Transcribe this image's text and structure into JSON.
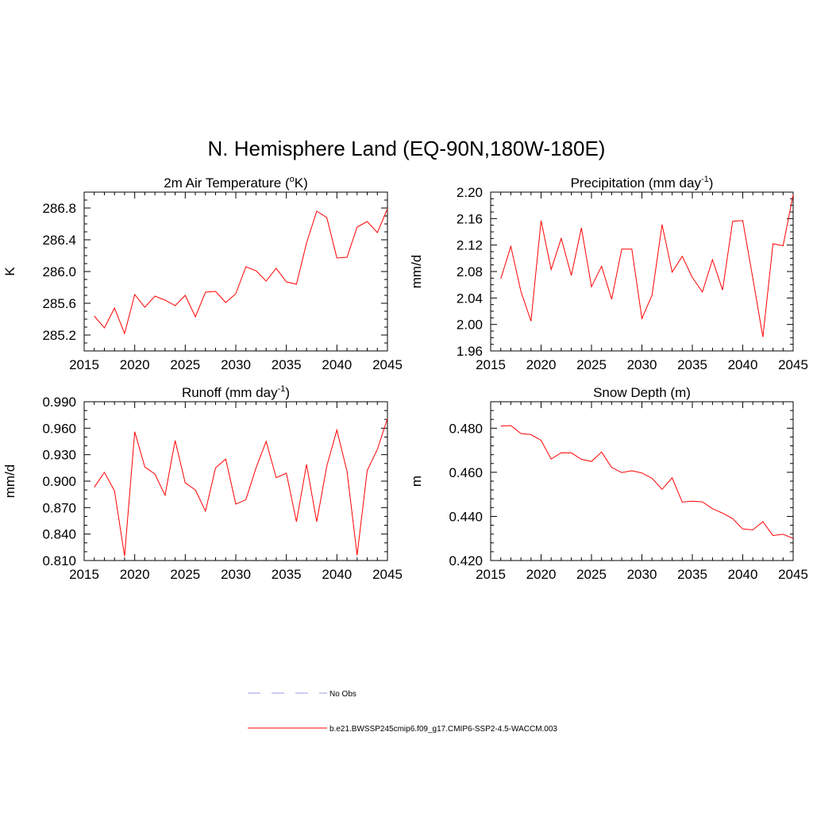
{
  "main_title": "N. Hemisphere Land (EQ-90N,180W-180E)",
  "colors": {
    "model_line": "#ff0000",
    "obs_line": "#aab0e6",
    "axis": "#000000"
  },
  "legend": [
    {
      "label": "No Obs",
      "style": "dashed",
      "color": "#aab0e6"
    },
    {
      "label": "b.e21.BWSSP245cmip6.f09_g17.CMIP6-SSP2-4.5-WACCM.003",
      "style": "solid",
      "color": "#ff0000"
    }
  ],
  "chart_data": [
    {
      "type": "line",
      "title_parts": [
        "2m Air Temperature (",
        "o",
        "K)"
      ],
      "title_style": "sup-middle",
      "ylabel": "K",
      "xlim": [
        2015,
        2045
      ],
      "ylim": [
        285.0,
        287.0
      ],
      "xticks": [
        2015,
        2020,
        2025,
        2030,
        2035,
        2040,
        2045
      ],
      "xtick_labels": [
        "2015",
        "2020",
        "2025",
        "2030",
        "2035",
        "2040",
        "2045"
      ],
      "yticks": [
        285.2,
        285.6,
        286.0,
        286.4,
        286.8
      ],
      "ytick_labels": [
        "285.2",
        "285.6",
        "286.0",
        "286.4",
        "286.8"
      ],
      "yminor_step": 0.1,
      "x": [
        2016,
        2017,
        2018,
        2019,
        2020,
        2021,
        2022,
        2023,
        2024,
        2025,
        2026,
        2027,
        2028,
        2029,
        2030,
        2031,
        2032,
        2033,
        2034,
        2035,
        2036,
        2037,
        2038,
        2039,
        2040,
        2041,
        2042,
        2043,
        2044,
        2045
      ],
      "series": [
        {
          "name": "b.e21.BWSSP245cmip6.f09_g17.CMIP6-SSP2-4.5-WACCM.003",
          "values": [
            285.44,
            285.29,
            285.54,
            285.22,
            285.71,
            285.55,
            285.69,
            285.64,
            285.57,
            285.7,
            285.43,
            285.74,
            285.75,
            285.61,
            285.72,
            286.06,
            286.01,
            285.88,
            286.04,
            285.87,
            285.84,
            286.36,
            286.76,
            286.68,
            286.17,
            286.18,
            286.56,
            286.63,
            286.49,
            286.79
          ]
        }
      ]
    },
    {
      "type": "line",
      "title_parts": [
        "Precipitation (mm day",
        "-1",
        ")"
      ],
      "title_style": "sup-inline",
      "ylabel": "mm/d",
      "xlim": [
        2015,
        2045
      ],
      "ylim": [
        1.96,
        2.2
      ],
      "xticks": [
        2015,
        2020,
        2025,
        2030,
        2035,
        2040,
        2045
      ],
      "xtick_labels": [
        "2015",
        "2020",
        "2025",
        "2030",
        "2035",
        "2040",
        "2045"
      ],
      "yticks": [
        1.96,
        2.0,
        2.04,
        2.08,
        2.12,
        2.16,
        2.2
      ],
      "ytick_labels": [
        "1.96",
        "2.00",
        "2.04",
        "2.08",
        "2.12",
        "2.16",
        "2.20"
      ],
      "yminor_step": 0.01,
      "x": [
        2016,
        2017,
        2018,
        2019,
        2020,
        2021,
        2022,
        2023,
        2024,
        2025,
        2026,
        2027,
        2028,
        2029,
        2030,
        2031,
        2032,
        2033,
        2034,
        2035,
        2036,
        2037,
        2038,
        2039,
        2040,
        2041,
        2042,
        2043,
        2044,
        2045
      ],
      "series": [
        {
          "name": "b.e21.BWSSP245cmip6.f09_g17.CMIP6-SSP2-4.5-WACCM.003",
          "values": [
            2.069,
            2.118,
            2.05,
            2.005,
            2.157,
            2.083,
            2.13,
            2.074,
            2.146,
            2.057,
            2.088,
            2.038,
            2.114,
            2.114,
            2.009,
            2.044,
            2.151,
            2.079,
            2.103,
            2.071,
            2.049,
            2.098,
            2.052,
            2.156,
            2.157,
            2.07,
            1.981,
            2.122,
            2.119,
            2.196
          ]
        }
      ]
    },
    {
      "type": "line",
      "title_parts": [
        "Runoff (mm day",
        "-1",
        ")"
      ],
      "title_style": "sup-inline",
      "ylabel": "mm/d",
      "xlim": [
        2015,
        2045
      ],
      "ylim": [
        0.81,
        0.99
      ],
      "xticks": [
        2015,
        2020,
        2025,
        2030,
        2035,
        2040,
        2045
      ],
      "xtick_labels": [
        "2015",
        "2020",
        "2025",
        "2030",
        "2035",
        "2040",
        "2045"
      ],
      "yticks": [
        0.81,
        0.84,
        0.87,
        0.9,
        0.93,
        0.96,
        0.99
      ],
      "ytick_labels": [
        "0.810",
        "0.840",
        "0.870",
        "0.900",
        "0.930",
        "0.960",
        "0.990"
      ],
      "yminor_step": 0.01,
      "x": [
        2016,
        2017,
        2018,
        2019,
        2020,
        2021,
        2022,
        2023,
        2024,
        2025,
        2026,
        2027,
        2028,
        2029,
        2030,
        2031,
        2032,
        2033,
        2034,
        2035,
        2036,
        2037,
        2038,
        2039,
        2040,
        2041,
        2042,
        2043,
        2044,
        2045
      ],
      "series": [
        {
          "name": "b.e21.BWSSP245cmip6.f09_g17.CMIP6-SSP2-4.5-WACCM.003",
          "values": [
            0.893,
            0.91,
            0.889,
            0.815,
            0.956,
            0.916,
            0.908,
            0.884,
            0.946,
            0.898,
            0.89,
            0.866,
            0.915,
            0.925,
            0.874,
            0.879,
            0.915,
            0.945,
            0.904,
            0.909,
            0.854,
            0.919,
            0.854,
            0.917,
            0.958,
            0.911,
            0.816,
            0.912,
            0.936,
            0.971
          ]
        }
      ]
    },
    {
      "type": "line",
      "title_parts": [
        "Snow Depth (m)"
      ],
      "title_style": "plain",
      "ylabel": "m",
      "xlim": [
        2015,
        2045
      ],
      "ylim": [
        0.42,
        0.492
      ],
      "xticks": [
        2015,
        2020,
        2025,
        2030,
        2035,
        2040,
        2045
      ],
      "xtick_labels": [
        "2015",
        "2020",
        "2025",
        "2030",
        "2035",
        "2040",
        "2045"
      ],
      "yticks": [
        0.42,
        0.44,
        0.46,
        0.48
      ],
      "ytick_labels": [
        "0.420",
        "0.440",
        "0.460",
        "0.480"
      ],
      "yminor_step": 0.004,
      "x": [
        2016,
        2017,
        2018,
        2019,
        2020,
        2021,
        2022,
        2023,
        2024,
        2025,
        2026,
        2027,
        2028,
        2029,
        2030,
        2031,
        2032,
        2033,
        2034,
        2035,
        2036,
        2037,
        2038,
        2039,
        2040,
        2041,
        2042,
        2043,
        2044,
        2045
      ],
      "series": [
        {
          "name": "b.e21.BWSSP245cmip6.f09_g17.CMIP6-SSP2-4.5-WACCM.003",
          "values": [
            0.481,
            0.4812,
            0.4776,
            0.4771,
            0.4745,
            0.466,
            0.4689,
            0.4688,
            0.4659,
            0.4649,
            0.4692,
            0.4622,
            0.4599,
            0.4607,
            0.4597,
            0.4573,
            0.4523,
            0.4575,
            0.4465,
            0.4469,
            0.4466,
            0.4435,
            0.4415,
            0.439,
            0.4343,
            0.4339,
            0.4376,
            0.4313,
            0.4319,
            0.43
          ]
        }
      ]
    }
  ]
}
